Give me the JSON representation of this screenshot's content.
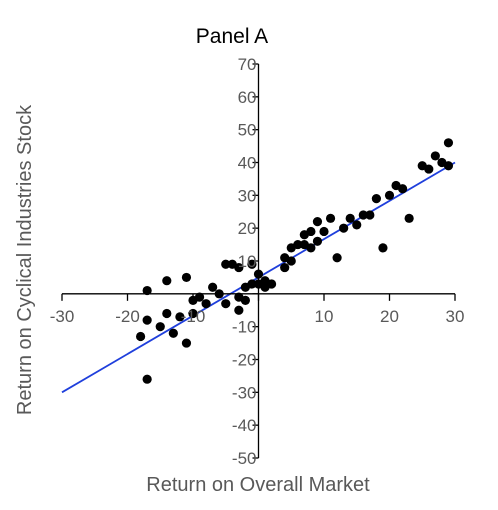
{
  "chart_data": {
    "type": "scatter",
    "title": "Panel A",
    "xlabel": "Return on Overall Market",
    "ylabel": "Return on Cyclical Industries Stock",
    "xlim": [
      -30,
      30
    ],
    "ylim": [
      -50,
      70
    ],
    "x_ticks": [
      -30,
      -20,
      -10,
      10,
      20,
      30
    ],
    "y_ticks": [
      -50,
      -40,
      -30,
      -20,
      -10,
      10,
      20,
      30,
      40,
      50,
      60,
      70
    ],
    "grid": false,
    "points": [
      {
        "x": -18,
        "y": -13
      },
      {
        "x": -17,
        "y": -8
      },
      {
        "x": -17,
        "y": -26
      },
      {
        "x": -17,
        "y": 1
      },
      {
        "x": -15,
        "y": -10
      },
      {
        "x": -14,
        "y": -6
      },
      {
        "x": -14,
        "y": 4
      },
      {
        "x": -13,
        "y": -12
      },
      {
        "x": -12,
        "y": -7
      },
      {
        "x": -11,
        "y": -15
      },
      {
        "x": -11,
        "y": 5
      },
      {
        "x": -10,
        "y": -6
      },
      {
        "x": -10,
        "y": -2
      },
      {
        "x": -9,
        "y": -1
      },
      {
        "x": -8,
        "y": -3
      },
      {
        "x": -7,
        "y": 2
      },
      {
        "x": -6,
        "y": 0
      },
      {
        "x": -5,
        "y": 9
      },
      {
        "x": -5,
        "y": -3
      },
      {
        "x": -4,
        "y": 9
      },
      {
        "x": -3,
        "y": 8
      },
      {
        "x": -3,
        "y": -1
      },
      {
        "x": -3,
        "y": -5
      },
      {
        "x": -2,
        "y": 2
      },
      {
        "x": -2,
        "y": -2
      },
      {
        "x": -1,
        "y": 3
      },
      {
        "x": -1,
        "y": 9
      },
      {
        "x": 0,
        "y": 3
      },
      {
        "x": 0,
        "y": 6
      },
      {
        "x": 1,
        "y": 4
      },
      {
        "x": 1,
        "y": 2
      },
      {
        "x": 2,
        "y": 3
      },
      {
        "x": 4,
        "y": 8
      },
      {
        "x": 4,
        "y": 11
      },
      {
        "x": 5,
        "y": 10
      },
      {
        "x": 5,
        "y": 14
      },
      {
        "x": 6,
        "y": 15
      },
      {
        "x": 7,
        "y": 18
      },
      {
        "x": 7,
        "y": 15
      },
      {
        "x": 8,
        "y": 14
      },
      {
        "x": 8,
        "y": 19
      },
      {
        "x": 9,
        "y": 16
      },
      {
        "x": 9,
        "y": 22
      },
      {
        "x": 10,
        "y": 19
      },
      {
        "x": 11,
        "y": 23
      },
      {
        "x": 12,
        "y": 11
      },
      {
        "x": 13,
        "y": 20
      },
      {
        "x": 14,
        "y": 23
      },
      {
        "x": 15,
        "y": 21
      },
      {
        "x": 16,
        "y": 24
      },
      {
        "x": 17,
        "y": 24
      },
      {
        "x": 18,
        "y": 29
      },
      {
        "x": 19,
        "y": 14
      },
      {
        "x": 20,
        "y": 30
      },
      {
        "x": 21,
        "y": 33
      },
      {
        "x": 22,
        "y": 32
      },
      {
        "x": 23,
        "y": 23
      },
      {
        "x": 25,
        "y": 39
      },
      {
        "x": 26,
        "y": 38
      },
      {
        "x": 27,
        "y": 42
      },
      {
        "x": 28,
        "y": 40
      },
      {
        "x": 29,
        "y": 39
      },
      {
        "x": 29,
        "y": 46
      }
    ],
    "fit_line": {
      "x": [
        -30,
        30
      ],
      "y": [
        -30,
        40
      ]
    },
    "colors": {
      "points": "#000000",
      "line": "#1f3fdc",
      "axes": "#000000",
      "tick_labels": "#595959"
    }
  }
}
